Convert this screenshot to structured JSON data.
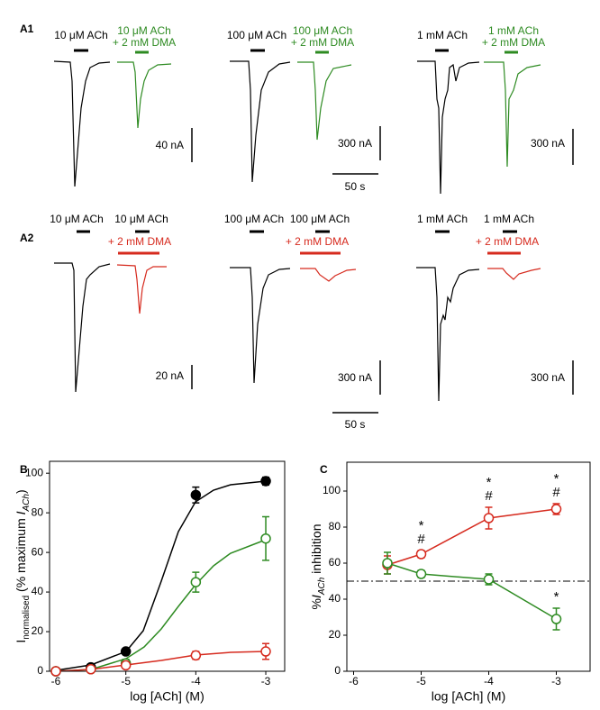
{
  "traces": {
    "rows": [
      {
        "label": "A1",
        "time": "50 s",
        "panels": [
          {
            "control": "10 μM ACh",
            "test": [
              "10 μM ACh",
              "+ 2 mM DMA"
            ],
            "scale": "40 nA"
          },
          {
            "control": "100 μM ACh",
            "test": [
              "100 μM ACh",
              "+ 2 mM DMA"
            ],
            "scale": "300 nA"
          },
          {
            "control": "1 mM ACh",
            "test": [
              "1 mM ACh",
              "+ 2 mM DMA"
            ],
            "scale": "300 nA"
          }
        ]
      },
      {
        "label": "A2",
        "time": "50 s",
        "panels": [
          {
            "control": "10 μM ACh",
            "test": "10 μM ACh",
            "drug": "+ 2 mM DMA",
            "scale": "20 nA"
          },
          {
            "control": "100 μM ACh",
            "test": "100 μM ACh",
            "drug": "+ 2 mM DMA",
            "scale": "300 nA"
          },
          {
            "control": "1 mM ACh",
            "test": "1 mM ACh",
            "drug": "+ 2 mM DMA",
            "scale": "300 nA"
          }
        ]
      }
    ]
  },
  "chart_data": [
    {
      "type": "scatter",
      "label": "B",
      "xlabel": "log [ACh] (M)",
      "ylabel": [
        {
          "text": "I",
          "style": "normal"
        },
        {
          "text": "normalised",
          "style": "sub"
        },
        {
          "text": " (% maximum ",
          "style": "normal"
        },
        {
          "text": "I",
          "style": "italic"
        },
        {
          "text": "ACh",
          "style": "italic-sub"
        },
        {
          "text": ")",
          "style": "normal"
        }
      ],
      "xlim": [
        -6.09,
        -2.73
      ],
      "xticks": [
        -6,
        -5,
        -4,
        -3
      ],
      "ylim": [
        0,
        106
      ],
      "yticks": [
        0,
        20,
        40,
        60,
        80,
        100
      ],
      "series": [
        {
          "color": "#000000",
          "marker": "filled",
          "x": [
            -6,
            -5.5,
            -5,
            -4,
            -3
          ],
          "values": [
            0,
            2,
            10,
            89,
            96
          ],
          "errors": [
            0,
            1,
            1,
            4,
            2
          ]
        },
        {
          "color": "#2e8b22",
          "marker": "open",
          "x": [
            -6,
            -5.5,
            -5,
            -4,
            -3
          ],
          "values": [
            0,
            1,
            4,
            45,
            67
          ],
          "errors": [
            0,
            1,
            2,
            5,
            11
          ]
        },
        {
          "color": "#d62a1e",
          "marker": "open",
          "x": [
            -6,
            -5.5,
            -5,
            -4,
            -3
          ],
          "values": [
            0,
            1,
            3,
            8,
            10
          ],
          "errors": [
            0,
            1,
            1,
            2,
            4
          ]
        }
      ]
    },
    {
      "type": "line",
      "label": "C",
      "xlabel": "log [ACh] (M)",
      "ylabel": [
        {
          "text": "%",
          "style": "normal"
        },
        {
          "text": "I",
          "style": "italic"
        },
        {
          "text": "ACh",
          "style": "italic-sub"
        },
        {
          "text": " inhibition",
          "style": "normal"
        }
      ],
      "xlim": [
        -6.1,
        -2.5
      ],
      "xticks": [
        -6,
        -5,
        -4,
        -3
      ],
      "ylim": [
        0,
        116
      ],
      "yticks": [
        0,
        20,
        40,
        60,
        80,
        100
      ],
      "reference_line": 50,
      "series": [
        {
          "color": "#d62a1e",
          "marker": "open",
          "x": [
            -5.5,
            -5,
            -4,
            -3
          ],
          "values": [
            59,
            65,
            85,
            90
          ],
          "errors": [
            5,
            2,
            6,
            3
          ]
        },
        {
          "color": "#2e8b22",
          "marker": "open",
          "x": [
            -5.5,
            -5,
            -4,
            -3
          ],
          "values": [
            60,
            54,
            51,
            29
          ],
          "errors": [
            6,
            2,
            3,
            6
          ]
        }
      ],
      "annotations": [
        {
          "series": 0,
          "index": 1,
          "text": [
            "*",
            "#"
          ]
        },
        {
          "series": 0,
          "index": 2,
          "text": [
            "*",
            "#"
          ]
        },
        {
          "series": 0,
          "index": 3,
          "text": [
            "*",
            "#"
          ]
        },
        {
          "series": 1,
          "index": 3,
          "text": [
            "*"
          ]
        }
      ]
    }
  ]
}
